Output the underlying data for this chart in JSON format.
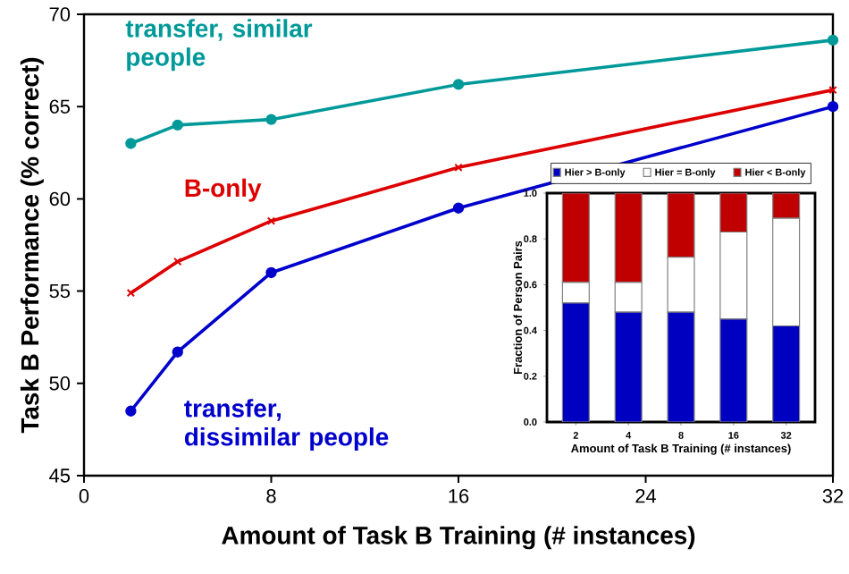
{
  "chart_data": [
    {
      "type": "line",
      "xlabel": "Amount of Task B Training (# instances)",
      "ylabel": "Task B Performance (% correct)",
      "x": [
        2,
        4,
        8,
        16,
        32
      ],
      "xlim": [
        0,
        32
      ],
      "xticks": [
        0,
        8,
        16,
        24,
        32
      ],
      "ylim": [
        45,
        70
      ],
      "yticks": [
        45,
        50,
        55,
        60,
        65,
        70
      ],
      "grid": false,
      "legend": false,
      "line_style": "solid",
      "series": [
        {
          "name": "transfer, similar people",
          "color": "#009999",
          "marker": "circle",
          "values": [
            63.0,
            64.0,
            64.3,
            66.2,
            68.6
          ]
        },
        {
          "name": "B-only",
          "color": "#dd0000",
          "marker": "cross",
          "values": [
            54.9,
            56.6,
            58.8,
            61.7,
            65.9
          ]
        },
        {
          "name": "transfer, dissimilar people",
          "color": "#0000cc",
          "marker": "circle",
          "values": [
            48.5,
            51.7,
            56.0,
            59.5,
            65.0
          ]
        }
      ]
    },
    {
      "type": "bar",
      "stacked": true,
      "xlabel": "Amount of Task B Training (# instances)",
      "ylabel": "Fraction of Person Pairs",
      "categories": [
        "2",
        "4",
        "8",
        "16",
        "32"
      ],
      "ylim": [
        0,
        1
      ],
      "yticks": [
        {
          "value": 0,
          "label": "0.0"
        },
        {
          "value": 0.2,
          "label": "0.2"
        },
        {
          "value": 0.4,
          "label": "0.4"
        },
        {
          "value": 0.6,
          "label": "0.6"
        },
        {
          "value": 0.8,
          "label": "0.8"
        },
        {
          "value": 1,
          "label": "1.0"
        }
      ],
      "legend": "top",
      "series": [
        {
          "name": "Hier > B-only",
          "color": "#0000c0",
          "values": [
            0.52,
            0.48,
            0.48,
            0.45,
            0.42
          ]
        },
        {
          "name": "Hier = B-only",
          "color": "#ffffff",
          "values": [
            0.09,
            0.13,
            0.24,
            0.38,
            0.47
          ]
        },
        {
          "name": "Hier < B-only",
          "color": "#c00000",
          "values": [
            0.39,
            0.39,
            0.28,
            0.17,
            0.11
          ]
        }
      ]
    }
  ]
}
